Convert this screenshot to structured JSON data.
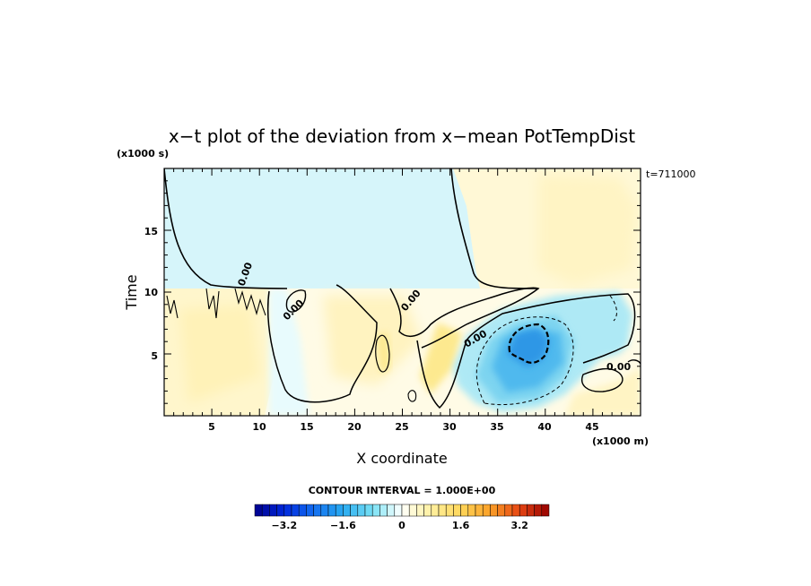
{
  "chart_data": {
    "type": "heatmap",
    "title": "x−t plot of the deviation from x−mean PotTempDist",
    "xlabel": "X coordinate",
    "ylabel": "Time",
    "x_unit": "(x1000 m)",
    "y_unit": "(x1000 s)",
    "time_stamp": "t=711000",
    "xlim": [
      0,
      50
    ],
    "ylim": [
      0,
      20
    ],
    "x_ticks": [
      "5",
      "10",
      "15",
      "20",
      "25",
      "30",
      "35",
      "40",
      "45"
    ],
    "y_ticks": [
      "5",
      "10",
      "15"
    ],
    "contour_interval_text": "CONTOUR INTERVAL = 1.000E+00",
    "contour_labels": [
      "0.00",
      "0.00",
      "0.00",
      "0.00",
      "0.00",
      "0.00"
    ],
    "colorbar": {
      "min": -4.0,
      "max": 4.0,
      "step": 0.2,
      "tick_values": [
        -3.2,
        -1.6,
        0,
        1.6,
        3.2
      ],
      "tick_labels": [
        "−3.2",
        "−1.6",
        "0",
        "1.6",
        "3.2"
      ]
    },
    "features": [
      {
        "region": "x 0–50, t 10.5–20",
        "value": -0.2,
        "note": "weak negative upper-left band"
      },
      {
        "region": "x 31–50, t 10.5–20",
        "value": 0.2,
        "note": "weak positive upper-right band"
      },
      {
        "region": "x 0–12, t 0–10.5",
        "value": 0.3
      },
      {
        "region": "x 25–30, t 2–7",
        "value": 0.8
      },
      {
        "region": "x 33–46, t 1–11",
        "value": -1.6
      },
      {
        "region": "x 36–40, t 5–8",
        "value": -2.2,
        "note": "minimum"
      }
    ]
  }
}
